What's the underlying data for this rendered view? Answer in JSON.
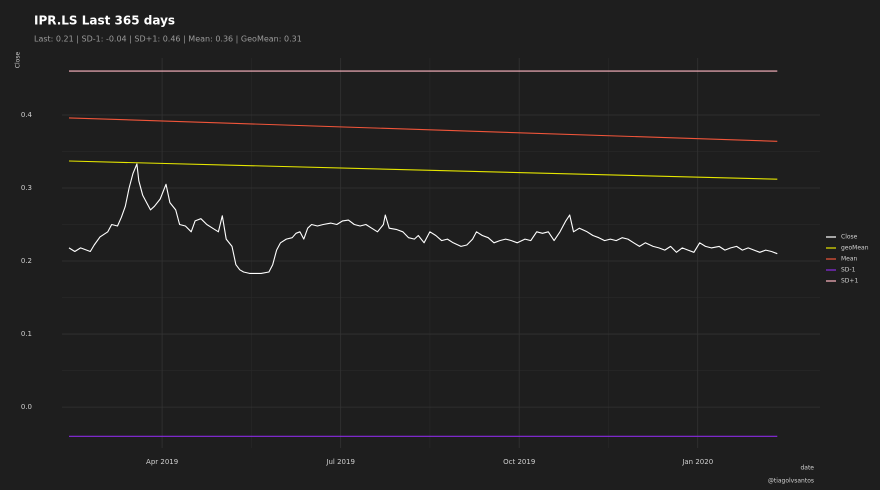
{
  "chart_data": {
    "type": "line",
    "title": "IPR.LS Last 365 days",
    "subtitle": "Last: 0.21 | SD-1: -0.04 | SD+1: 0.46 | Mean: 0.36 | GeoMean: 0.31",
    "x_label": "date",
    "y_label": "Close",
    "caption": "@tiagolvsantos",
    "xlim": [
      -3.6,
      387
    ],
    "xticks": [
      {
        "value": 48,
        "label": "Apr 2019"
      },
      {
        "value": 140,
        "label": "Jul 2019"
      },
      {
        "value": 232,
        "label": "Oct 2019"
      },
      {
        "value": 324,
        "label": "Jan 2020"
      }
    ],
    "ylim": [
      -0.056,
      0.478
    ],
    "yticks": [
      {
        "value": 0,
        "label": "0.0"
      },
      0.1,
      0.2,
      0.3,
      0.4
    ],
    "grid": true,
    "legend": "right",
    "series": [
      {
        "name": "Close",
        "color": "#ffffff",
        "x": [
          0,
          3,
          6,
          11,
          13,
          16,
          20,
          22,
          25,
          27,
          29,
          31,
          33,
          35,
          36,
          38,
          40,
          42,
          44,
          47,
          50,
          52,
          55,
          57,
          60,
          63,
          65,
          68,
          71,
          74,
          77,
          79,
          81,
          84,
          86,
          88,
          90,
          93,
          96,
          99,
          103,
          105,
          107,
          109,
          112,
          115,
          117,
          119,
          121,
          123,
          125,
          128,
          131,
          135,
          138,
          141,
          144,
          147,
          150,
          153,
          156,
          159,
          162,
          163,
          165,
          169,
          172,
          175,
          178,
          180,
          183,
          186,
          189,
          192,
          195,
          198,
          202,
          205,
          208,
          210,
          213,
          216,
          219,
          222,
          225,
          228,
          231,
          235,
          238,
          241,
          244,
          247,
          250,
          253,
          256,
          258,
          260,
          263,
          267,
          270,
          273,
          276,
          279,
          282,
          285,
          288,
          291,
          294,
          297,
          301,
          304,
          307,
          310,
          313,
          316,
          319,
          322,
          325,
          328,
          331,
          335,
          338,
          341,
          344,
          347,
          350,
          353,
          356,
          359,
          362,
          365
        ],
        "values": [
          0.218,
          0.213,
          0.218,
          0.213,
          0.222,
          0.233,
          0.24,
          0.25,
          0.248,
          0.26,
          0.275,
          0.3,
          0.32,
          0.333,
          0.31,
          0.29,
          0.28,
          0.27,
          0.275,
          0.285,
          0.305,
          0.28,
          0.27,
          0.25,
          0.248,
          0.24,
          0.255,
          0.258,
          0.25,
          0.245,
          0.24,
          0.262,
          0.23,
          0.22,
          0.195,
          0.188,
          0.185,
          0.183,
          0.183,
          0.183,
          0.185,
          0.195,
          0.215,
          0.225,
          0.23,
          0.232,
          0.238,
          0.24,
          0.23,
          0.245,
          0.25,
          0.248,
          0.25,
          0.252,
          0.25,
          0.255,
          0.256,
          0.25,
          0.248,
          0.25,
          0.245,
          0.24,
          0.25,
          0.263,
          0.245,
          0.243,
          0.24,
          0.232,
          0.23,
          0.235,
          0.225,
          0.24,
          0.235,
          0.228,
          0.23,
          0.225,
          0.22,
          0.222,
          0.23,
          0.24,
          0.235,
          0.232,
          0.225,
          0.228,
          0.23,
          0.228,
          0.225,
          0.23,
          0.228,
          0.24,
          0.238,
          0.24,
          0.228,
          0.24,
          0.255,
          0.263,
          0.24,
          0.245,
          0.24,
          0.235,
          0.232,
          0.228,
          0.23,
          0.228,
          0.232,
          0.23,
          0.225,
          0.22,
          0.225,
          0.22,
          0.218,
          0.215,
          0.22,
          0.212,
          0.218,
          0.215,
          0.212,
          0.225,
          0.22,
          0.218,
          0.22,
          0.215,
          0.218,
          0.22,
          0.215,
          0.218,
          0.215,
          0.212,
          0.215,
          0.213,
          0.21
        ]
      },
      {
        "name": "geoMean",
        "color": "#e5e600",
        "x": [
          0,
          365
        ],
        "values": [
          0.337,
          0.312
        ]
      },
      {
        "name": "Mean",
        "color": "#f0553a",
        "x": [
          0,
          365
        ],
        "values": [
          0.396,
          0.364
        ]
      },
      {
        "name": "SD-1",
        "color": "#8a2be2",
        "x": [
          0,
          365
        ],
        "values": [
          -0.04,
          -0.04
        ]
      },
      {
        "name": "SD+1",
        "color": "#ffb6c1",
        "x": [
          0,
          365
        ],
        "values": [
          0.46,
          0.46
        ]
      }
    ]
  }
}
